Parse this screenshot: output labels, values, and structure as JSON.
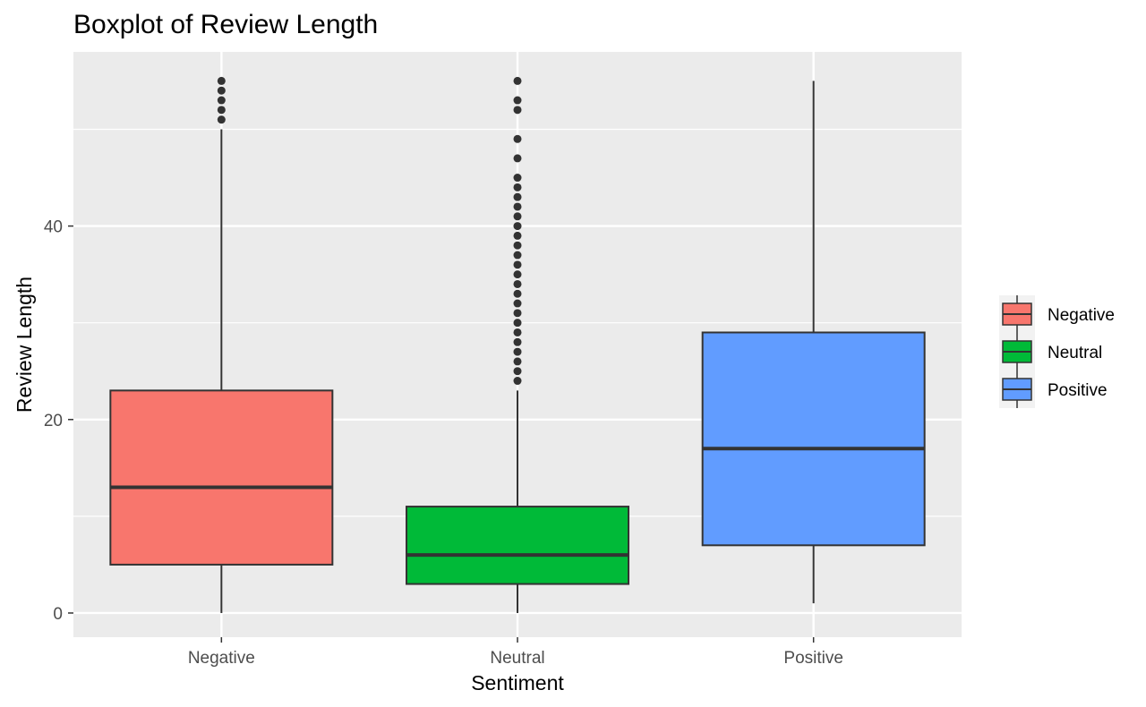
{
  "chart_data": {
    "type": "boxplot",
    "title": "Boxplot of Review Length",
    "xlabel": "Sentiment",
    "ylabel": "Review Length",
    "categories": [
      "Negative",
      "Neutral",
      "Positive"
    ],
    "ylim": [
      -2.5,
      58
    ],
    "yticks": [
      0,
      20,
      40
    ],
    "grid": true,
    "legend_position": "right",
    "series": [
      {
        "name": "Negative",
        "color": "#F8766D",
        "min": 0,
        "q1": 5,
        "median": 13,
        "q3": 23,
        "max": 50,
        "outliers": [
          51,
          52,
          53,
          54,
          55
        ]
      },
      {
        "name": "Neutral",
        "color": "#00BA38",
        "min": 0,
        "q1": 3,
        "median": 6,
        "q3": 11,
        "max": 23,
        "outliers": [
          24,
          25,
          26,
          27,
          28,
          29,
          30,
          31,
          32,
          33,
          34,
          35,
          36,
          37,
          38,
          39,
          40,
          41,
          42,
          43,
          44,
          45,
          47,
          49,
          52,
          53,
          55
        ]
      },
      {
        "name": "Positive",
        "color": "#619CFF",
        "min": 1,
        "q1": 7,
        "median": 17,
        "q3": 29,
        "max": 55,
        "outliers": []
      }
    ]
  }
}
